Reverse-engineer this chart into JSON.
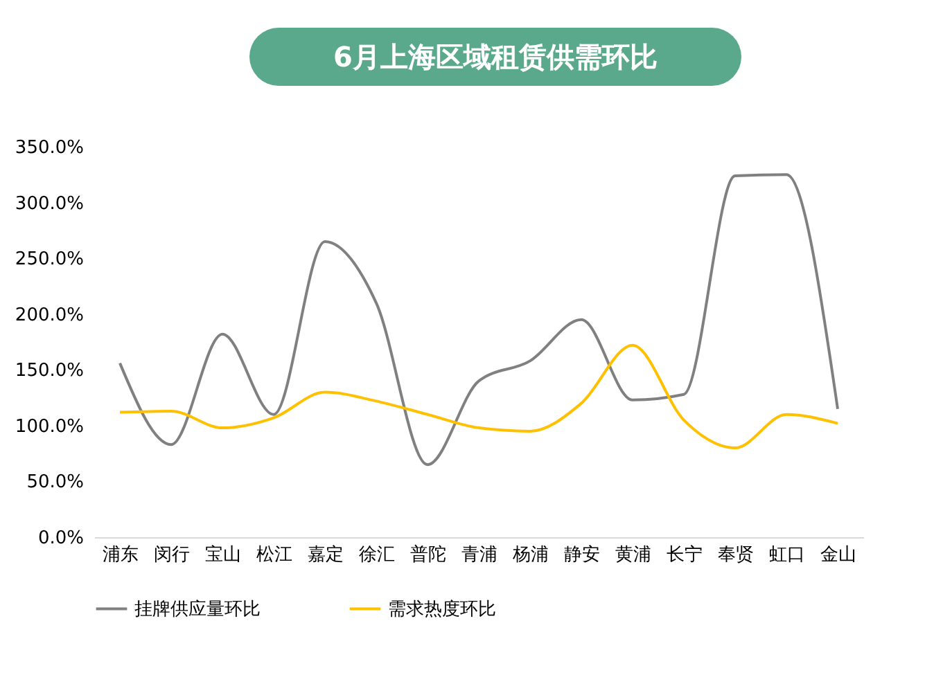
{
  "chart_data": {
    "type": "line",
    "title": "6月上海区域租赁供需环比",
    "categories": [
      "浦东",
      "闵行",
      "宝山",
      "松江",
      "嘉定",
      "徐汇",
      "普陀",
      "青浦",
      "杨浦",
      "静安",
      "黄浦",
      "长宁",
      "奉贤",
      "虹口",
      "金山"
    ],
    "series": [
      {
        "name": "挂牌供应量环比",
        "color": "#808080",
        "values": [
          156,
          83,
          182,
          110,
          265,
          210,
          65,
          140,
          158,
          195,
          123,
          128,
          324,
          325,
          115
        ]
      },
      {
        "name": "需求热度环比",
        "color": "#ffc000",
        "values": [
          112,
          113,
          98,
          107,
          130,
          122,
          110,
          98,
          95,
          120,
          172,
          105,
          80,
          110,
          102
        ]
      }
    ],
    "ylim": [
      0,
      350
    ],
    "yticks": [
      {
        "value": 0,
        "label": "0.0%"
      },
      {
        "value": 50,
        "label": "50.0%"
      },
      {
        "value": 100,
        "label": "100.0%"
      },
      {
        "value": 150,
        "label": "150.0%"
      },
      {
        "value": 200,
        "label": "200.0%"
      },
      {
        "value": 250,
        "label": "250.0%"
      },
      {
        "value": 300,
        "label": "300.0%"
      },
      {
        "value": 350,
        "label": "350.0%"
      }
    ],
    "grid": false,
    "legend": "bottom",
    "marker": "none",
    "line_style": "solid"
  }
}
